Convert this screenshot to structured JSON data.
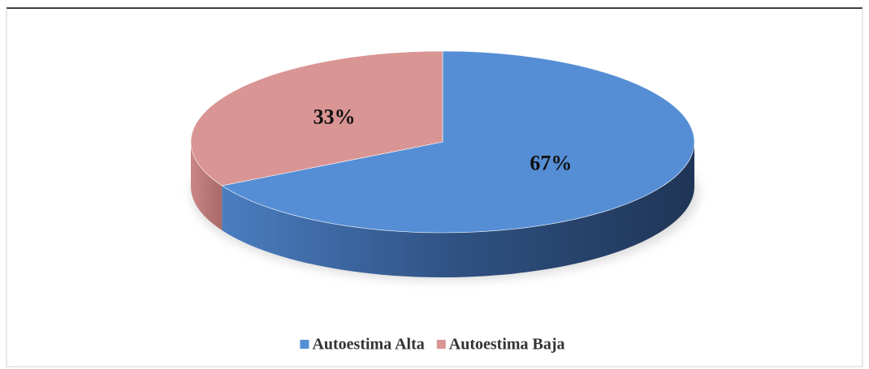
{
  "chart_data": {
    "type": "pie",
    "categories": [
      "Autoestima Alta",
      "Autoestima Baja"
    ],
    "values": [
      67,
      33
    ],
    "value_labels": [
      "67%",
      "33%"
    ],
    "colors": [
      "#558ed5",
      "#d99594"
    ]
  }
}
